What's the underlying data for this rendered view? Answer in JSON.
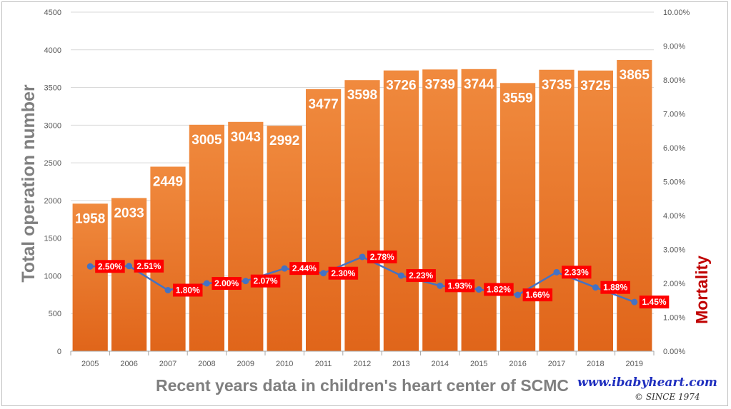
{
  "chart_data": {
    "type": "bar",
    "categories": [
      "2005",
      "2006",
      "2007",
      "2008",
      "2009",
      "2010",
      "2011",
      "2012",
      "2013",
      "2014",
      "2015",
      "2016",
      "2017",
      "2018",
      "2019"
    ],
    "series": [
      {
        "name": "",
        "axis": "left",
        "type": "bar",
        "values": [
          1958,
          2033,
          2449,
          3005,
          3043,
          2992,
          3477,
          3598,
          3726,
          3739,
          3744,
          3559,
          3735,
          3725,
          3865
        ],
        "labels": [
          "1958",
          "2033",
          "2449",
          "3005",
          "3043",
          "2992",
          "3477",
          "3598",
          "3726",
          "3739",
          "3744",
          "3559",
          "3735",
          "3725",
          "3865"
        ],
        "color": "#ed7d31"
      },
      {
        "name": "",
        "axis": "right",
        "type": "line",
        "values": [
          2.5,
          2.51,
          1.8,
          2.0,
          2.07,
          2.44,
          2.3,
          2.78,
          2.23,
          1.93,
          1.82,
          1.66,
          2.33,
          1.88,
          1.45
        ],
        "labels": [
          "2.50%",
          "2.51%",
          "1.80%",
          "2.00%",
          "2.07%",
          "2.44%",
          "2.30%",
          "2.78%",
          "2.23%",
          "1.93%",
          "1.82%",
          "1.66%",
          "2.33%",
          "1.88%",
          "1.45%"
        ],
        "color": "#4472c4",
        "label_color": "#ff0000"
      }
    ],
    "title": "Recent years data in children's heart center of SCMC",
    "ylabel": "Total operation number",
    "y2label": "Mortality",
    "ylim": [
      0,
      4500
    ],
    "y2lim": [
      0,
      10
    ],
    "yticks": [
      "0",
      "500",
      "1000",
      "1500",
      "2000",
      "2500",
      "3000",
      "3500",
      "4000",
      "4500"
    ],
    "y2ticks": [
      "0.00%",
      "1.00%",
      "2.00%",
      "3.00%",
      "4.00%",
      "5.00%",
      "6.00%",
      "7.00%",
      "8.00%",
      "9.00%",
      "10.00%"
    ],
    "grid": true,
    "legend": "none"
  },
  "watermark": {
    "url": "www.ibabyheart.com",
    "since": "© SINCE 1974"
  },
  "colors": {
    "bar_top": "#f08a3e",
    "bar_bottom": "#e0651a",
    "line": "#4472c4",
    "line_label_bg": "#ff0000",
    "y2label": "#c00000",
    "axis_text": "#595959",
    "grid": "#d9d9d9"
  }
}
